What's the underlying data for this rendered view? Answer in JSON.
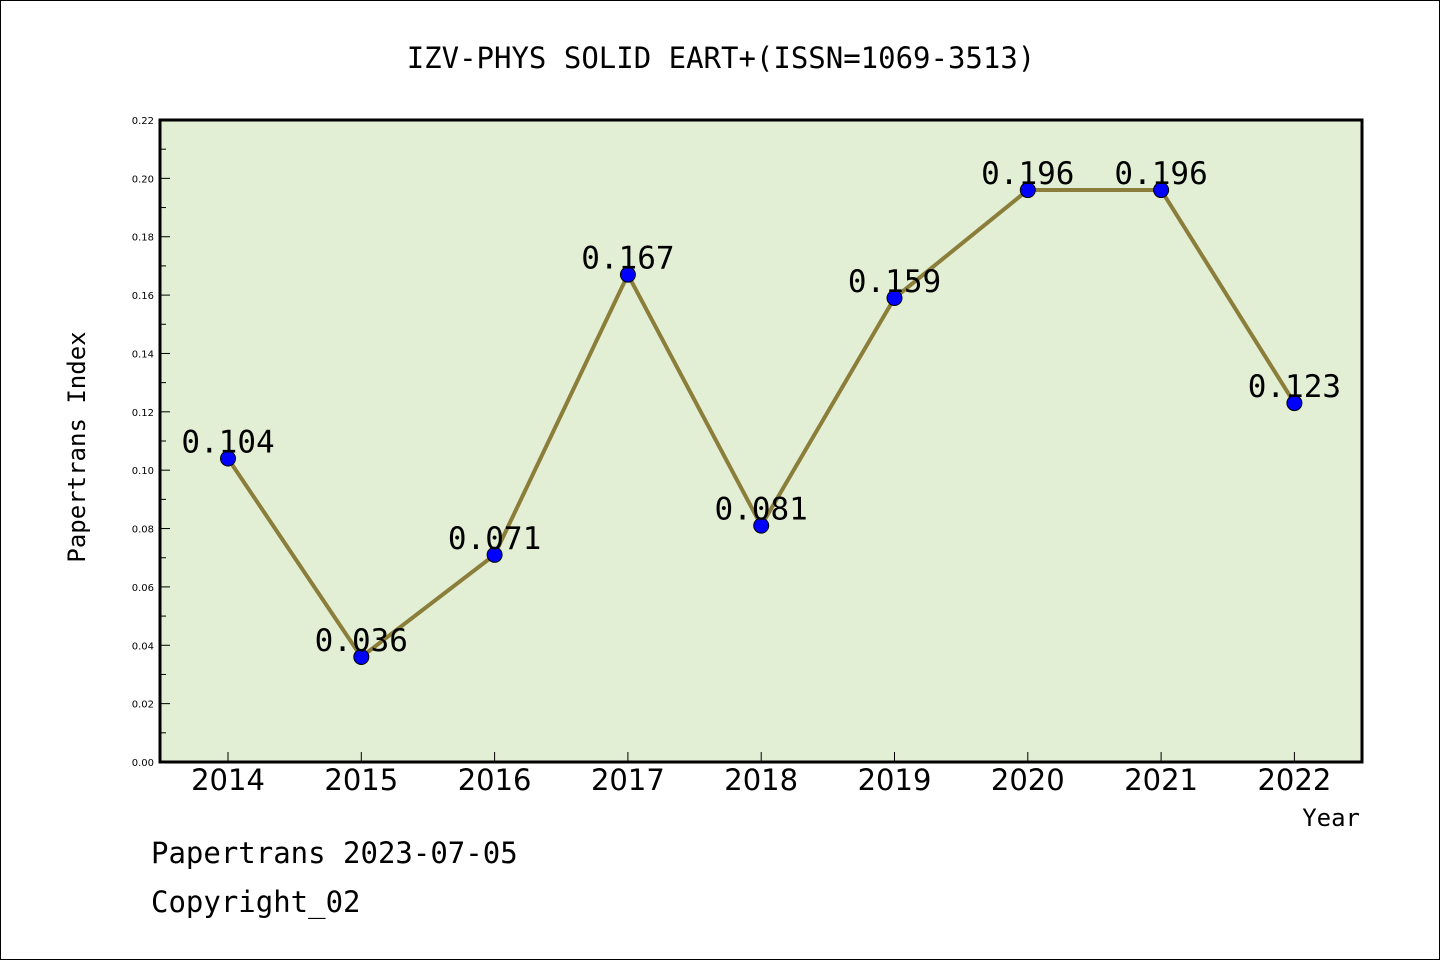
{
  "chart_data": {
    "type": "line",
    "title": "IZV-PHYS SOLID EART+(ISSN=1069-3513)",
    "xlabel": "Year",
    "ylabel": "Papertrans Index",
    "x": [
      "2014",
      "2015",
      "2016",
      "2017",
      "2018",
      "2019",
      "2020",
      "2021",
      "2022"
    ],
    "series": [
      {
        "values": [
          0.104,
          0.036,
          0.071,
          0.167,
          0.081,
          0.159,
          0.196,
          0.196,
          0.123
        ],
        "labels": [
          "0.104",
          "0.036",
          "0.071",
          "0.167",
          "0.081",
          "0.159",
          "0.196",
          "0.196",
          "0.123"
        ]
      }
    ],
    "ylim": [
      0,
      0.22
    ],
    "yticks": [
      "0.00",
      "0.02",
      "0.04",
      "0.06",
      "0.08",
      "0.10",
      "0.12",
      "0.14",
      "0.16",
      "0.18",
      "0.20",
      "0.22"
    ],
    "grid": false,
    "colors": {
      "plot_background": "#e2efd4",
      "line": "#8b7d3a",
      "marker": "#0000ff",
      "axis": "#000000"
    }
  },
  "footer": {
    "line1": "Papertrans 2023-07-05",
    "line2": "Copyright_02"
  }
}
